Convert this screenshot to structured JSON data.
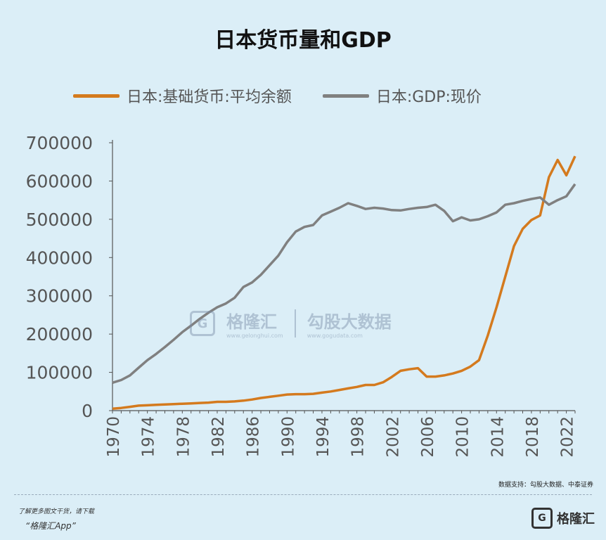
{
  "chart_data": {
    "type": "line",
    "title": "日本货币量和GDP",
    "xlabel": "",
    "ylabel": "",
    "x": [
      1970,
      1971,
      1972,
      1973,
      1974,
      1975,
      1976,
      1977,
      1978,
      1979,
      1980,
      1981,
      1982,
      1983,
      1984,
      1985,
      1986,
      1987,
      1988,
      1989,
      1990,
      1991,
      1992,
      1993,
      1994,
      1995,
      1996,
      1997,
      1998,
      1999,
      2000,
      2001,
      2002,
      2003,
      2004,
      2005,
      2006,
      2007,
      2008,
      2009,
      2010,
      2011,
      2012,
      2013,
      2014,
      2015,
      2016,
      2017,
      2018,
      2019,
      2020,
      2021,
      2022,
      2023
    ],
    "xticks": [
      "1970",
      "1974",
      "1978",
      "1982",
      "1986",
      "1990",
      "1994",
      "1998",
      "2002",
      "2006",
      "2010",
      "2014",
      "2018",
      "2022"
    ],
    "yticks": [
      "0",
      "100000",
      "200000",
      "300000",
      "400000",
      "500000",
      "600000",
      "700000"
    ],
    "ylim": [
      0,
      700000
    ],
    "xlim": [
      1970,
      2023
    ],
    "legend_position": "top",
    "grid": false,
    "series": [
      {
        "name": "日本:基础货币:平均余额",
        "color": "#d47a1e",
        "values": [
          5000,
          7000,
          10000,
          13000,
          14000,
          15000,
          16000,
          17000,
          18000,
          19000,
          20000,
          21000,
          23000,
          23000,
          24000,
          26000,
          29000,
          33000,
          36000,
          39000,
          42000,
          43000,
          43000,
          44000,
          47000,
          50000,
          54000,
          58000,
          62000,
          67000,
          67000,
          74000,
          88000,
          104000,
          108000,
          111000,
          89000,
          89000,
          92000,
          97000,
          104000,
          115000,
          132000,
          196000,
          270000,
          350000,
          430000,
          475000,
          498000,
          510000,
          610000,
          655000,
          615000,
          665000
        ]
      },
      {
        "name": "日本:GDP:现价",
        "color": "#808080",
        "values": [
          73000,
          80000,
          92000,
          112000,
          132000,
          148000,
          166000,
          185000,
          205000,
          222000,
          240000,
          256000,
          270000,
          280000,
          295000,
          323000,
          335000,
          355000,
          380000,
          405000,
          440000,
          468000,
          480000,
          485000,
          510000,
          520000,
          530000,
          542000,
          535000,
          527000,
          530000,
          528000,
          524000,
          523000,
          527000,
          530000,
          532000,
          538000,
          522000,
          495000,
          505000,
          497000,
          500000,
          508000,
          518000,
          538000,
          542000,
          548000,
          553000,
          557000,
          538000,
          550000,
          560000,
          592000
        ]
      }
    ]
  },
  "watermark": {
    "brand": "格隆汇",
    "brand_url": "www.gelonghui.com",
    "partner": "勾股大数据",
    "partner_url": "www.gogudata.com"
  },
  "source_note": "数据支持：勾股大数据、中泰证券",
  "footer": {
    "line1": "了解更多图文干货，请下载",
    "line2": "“格隆汇App”",
    "logo_text": "格隆汇"
  }
}
